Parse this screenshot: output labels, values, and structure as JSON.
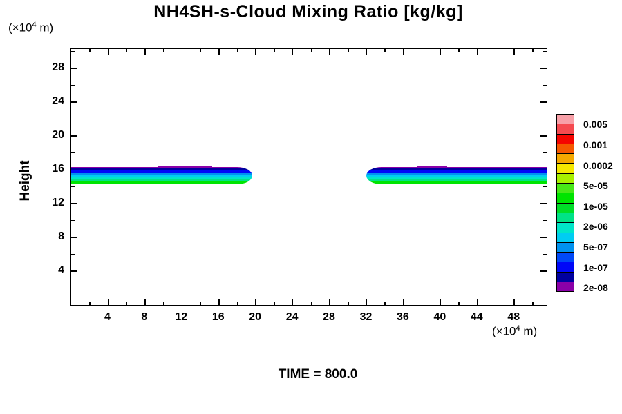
{
  "title": "NH4SH-s-Cloud Mixing Ratio [kg/kg]",
  "axis": {
    "y_label": "Height",
    "y_unit_prefix": "(×10",
    "y_unit_sup": "4",
    "y_unit_suffix": " m)",
    "x_unit_prefix": "(×10",
    "x_unit_sup": "4",
    "x_unit_suffix": " m)"
  },
  "footer": {
    "time_label": "TIME = 800.0"
  },
  "chart_data": {
    "type": "filled-contour",
    "title": "NH4SH-s-Cloud Mixing Ratio [kg/kg]",
    "xlabel": "(×10⁴ m)",
    "ylabel": "Height",
    "ylabel_unit": "(×10⁴ m)",
    "time_annotation": "TIME = 800.0",
    "time": 800.0,
    "grid": false,
    "legend_position": "right",
    "x_range": [
      0,
      51.5
    ],
    "y_range": [
      0,
      30.3
    ],
    "x_major_ticks": [
      4,
      8,
      12,
      16,
      20,
      24,
      28,
      32,
      36,
      40,
      44,
      48
    ],
    "y_major_ticks": [
      4,
      8,
      12,
      16,
      20,
      24,
      28
    ],
    "minor_tick_step": 2,
    "colorbar_boundary_labels": [
      "0.005",
      "0.001",
      "0.0002",
      "5e-05",
      "1e-05",
      "2e-06",
      "5e-07",
      "1e-07",
      "2e-08"
    ],
    "colorbar_colors_top_to_bottom": [
      "#F8A0A8",
      "#F54A50",
      "#F50400",
      "#F55800",
      "#F5A800",
      "#F5E800",
      "#A8F000",
      "#48E818",
      "#00E400",
      "#00DE28",
      "#00E387",
      "#00E6C8",
      "#00CDF2",
      "#0092F0",
      "#0049F8",
      "#0008F8",
      "#0000A0",
      "#8A00A8"
    ],
    "clouds": [
      {
        "name": "left-cloud-band",
        "x_start": 0.0,
        "x_end": 19.6,
        "y_top": 16.35,
        "y_bottom": 14.3,
        "rounded_end": "right",
        "top_contour_bumps": [
          {
            "x_start": 9.4,
            "x_end": 15.3
          }
        ]
      },
      {
        "name": "right-cloud-band",
        "x_start": 32.0,
        "x_end": 51.5,
        "y_top": 16.35,
        "y_bottom": 14.3,
        "rounded_end": "left",
        "top_contour_bumps": [
          {
            "x_start": 37.4,
            "x_end": 40.7
          }
        ]
      }
    ],
    "cloud_layer_stack_top_to_bottom": [
      {
        "color": "#8A00A8",
        "px": 2
      },
      {
        "color": "#0000A0",
        "px": 3
      },
      {
        "color": "#0008F8",
        "px": 4
      },
      {
        "color": "#0092F0",
        "px": 3
      },
      {
        "color": "#00CDF2",
        "px": 3
      },
      {
        "color": "#00E6C8",
        "px": 3
      },
      {
        "color": "#00E387",
        "px": 3
      },
      {
        "color": "#00E400",
        "px": 4
      }
    ]
  }
}
